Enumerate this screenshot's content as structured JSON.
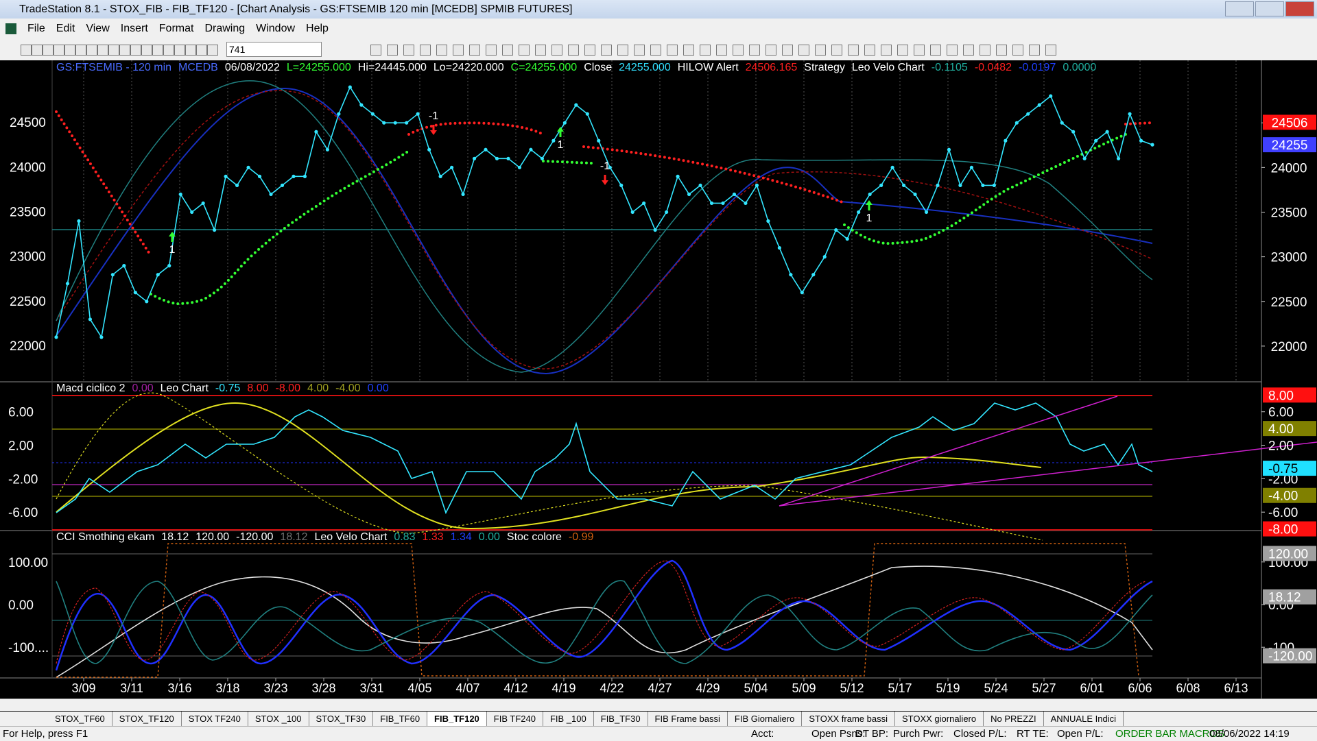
{
  "window": {
    "title": "TradeStation 8.1 - STOX_FIB - FIB_TF120 - [Chart Analysis - GS:FTSEMIB  120 min  [MCEDB] SPMIB FUTURES]",
    "menu": [
      "File",
      "Edit",
      "View",
      "Insert",
      "Format",
      "Drawing",
      "Window",
      "Help"
    ],
    "symbol_field": "741"
  },
  "price_panel": {
    "info": [
      {
        "text": "GS:FTSEMIB - 120 min",
        "color": "#4a6cff"
      },
      {
        "text": "MCEDB",
        "color": "#4a6cff"
      },
      {
        "text": "06/08/2022",
        "color": "#ffffff"
      },
      {
        "text": "L=24255.000",
        "color": "#33ff33"
      },
      {
        "text": "Hi=24445.000",
        "color": "#ffffff"
      },
      {
        "text": "Lo=24220.000",
        "color": "#ffffff"
      },
      {
        "text": "C=24255.000",
        "color": "#33ff33"
      },
      {
        "text": "Close",
        "color": "#ffffff"
      },
      {
        "text": "24255.000",
        "color": "#33e0ff"
      },
      {
        "text": "HILOW Alert",
        "color": "#ffffff"
      },
      {
        "text": "24506.165",
        "color": "#ff2020"
      },
      {
        "text": "Strategy",
        "color": "#ffffff"
      },
      {
        "text": "Leo Velo Chart",
        "color": "#ffffff"
      },
      {
        "text": "-0.1105",
        "color": "#20b0a0"
      },
      {
        "text": "-0.0482",
        "color": "#ff2020"
      },
      {
        "text": "-0.0197",
        "color": "#2040ff"
      },
      {
        "text": "0.0000",
        "color": "#20b0a0"
      }
    ],
    "ylim": [
      21600,
      25200
    ],
    "yticks": [
      24500,
      24000,
      23500,
      23000,
      22500,
      22000
    ],
    "last_labels": [
      {
        "value": 24506,
        "color": "#ff1010"
      },
      {
        "value": 24255,
        "color": "#4040ff"
      }
    ],
    "color": "#33e6ff",
    "values": [
      22100,
      22700,
      23400,
      22300,
      22100,
      22800,
      22900,
      22600,
      22500,
      22800,
      22900,
      23700,
      23500,
      23600,
      23300,
      23900,
      23800,
      24000,
      23900,
      23700,
      23800,
      23900,
      23900,
      24400,
      24200,
      24600,
      24900,
      24700,
      24600,
      24500,
      24500,
      24500,
      24600,
      24200,
      23900,
      24000,
      23700,
      24100,
      24200,
      24100,
      24100,
      24000,
      24200,
      24100,
      24300,
      24500,
      24700,
      24600,
      24300,
      24000,
      23800,
      23500,
      23600,
      23300,
      23500,
      23900,
      23700,
      23800,
      23600,
      23600,
      23700,
      23600,
      23800,
      23400,
      23100,
      22800,
      22600,
      22800,
      23000,
      23300,
      23200,
      23500,
      23700,
      23800,
      24000,
      23800,
      23700,
      23500,
      23800,
      24200,
      23800,
      24000,
      23800,
      23800,
      24300,
      24500,
      24600,
      24700,
      24800,
      24500,
      24400,
      24100,
      24300,
      24400,
      24100,
      24600,
      24300,
      24255
    ],
    "signals": [
      1,
      -1,
      1,
      -1,
      1
    ]
  },
  "macd_panel": {
    "info": [
      {
        "text": "Macd ciclico 2",
        "color": "#ffffff"
      },
      {
        "text": "0.00",
        "color": "#a020a0"
      },
      {
        "text": "Leo Chart",
        "color": "#ffffff"
      },
      {
        "text": "-0.75",
        "color": "#33e6ff"
      },
      {
        "text": "8.00",
        "color": "#ff2020"
      },
      {
        "text": "-8.00",
        "color": "#ff2020"
      },
      {
        "text": "4.00",
        "color": "#a0a020"
      },
      {
        "text": "-4.00",
        "color": "#a0a020"
      },
      {
        "text": "0.00",
        "color": "#2040ff"
      }
    ],
    "ylim": [
      -8.2,
      9.5
    ],
    "yticks": [
      {
        "value": 6,
        "label": "6.00"
      },
      {
        "value": 2,
        "label": "2.00"
      },
      {
        "value": -2,
        "label": "-2.00"
      },
      {
        "value": -6,
        "label": "-6.00"
      }
    ],
    "right_labels": [
      {
        "value": 8,
        "label": "8.00",
        "color": "#ff1010"
      },
      {
        "value": 4,
        "label": "4.00",
        "color": "#808000"
      },
      {
        "value": -0.75,
        "label": "-0.75",
        "color": "#20e0ff"
      },
      {
        "value": -4,
        "label": "-4.00",
        "color": "#808000"
      },
      {
        "value": -8,
        "label": "-8.00",
        "color": "#ff1010"
      }
    ]
  },
  "cci_panel": {
    "info": [
      {
        "text": "CCI Smothing ekam",
        "color": "#ffffff"
      },
      {
        "text": "18.12",
        "color": "#ffffff"
      },
      {
        "text": "120.00",
        "color": "#ffffff"
      },
      {
        "text": "-120.00",
        "color": "#ffffff"
      },
      {
        "text": "18.12",
        "color": "#707070"
      },
      {
        "text": "Leo Velo Chart",
        "color": "#ffffff"
      },
      {
        "text": "0.83",
        "color": "#20b0a0"
      },
      {
        "text": "1.33",
        "color": "#ff2020"
      },
      {
        "text": "1.34",
        "color": "#2040ff"
      },
      {
        "text": "0.00",
        "color": "#20b0a0"
      },
      {
        "text": "Stoc colore",
        "color": "#ffffff"
      },
      {
        "text": "-0.99",
        "color": "#d06010"
      }
    ],
    "ylim": [
      -172,
      172
    ],
    "yticks": [
      {
        "value": 100,
        "label": "100.00"
      },
      {
        "value": 0,
        "label": "0.00"
      },
      {
        "value": -100,
        "label": "-100...."
      }
    ],
    "right_labels": [
      {
        "value": 120,
        "label": "120.00",
        "color": "#a0a0a0"
      },
      {
        "value": 18.12,
        "label": "18.12",
        "color": "#a0a0a0"
      },
      {
        "value": -120,
        "label": "-120.00",
        "color": "#a0a0a0"
      }
    ]
  },
  "dates": [
    "3/09",
    "3/11",
    "3/16",
    "3/18",
    "3/23",
    "3/28",
    "3/31",
    "4/05",
    "4/07",
    "4/12",
    "4/19",
    "4/22",
    "4/27",
    "4/29",
    "5/04",
    "5/09",
    "5/12",
    "5/17",
    "5/19",
    "5/24",
    "5/27",
    "6/01",
    "6/06",
    "6/08",
    "6/13"
  ],
  "tabs": [
    "STOX_TF60",
    "STOX_TF120",
    "STOX TF240",
    "STOX _100",
    "STOX_TF30",
    "FIB_TF60",
    "FIB_TF120",
    "FIB TF240",
    "FIB _100",
    "FIB_TF30",
    "FIB Frame bassi",
    "FIB Giornaliero",
    "STOXX frame bassi",
    "STOXX giornaliero",
    "No PREZZI",
    "ANNUALE Indici"
  ],
  "status": [
    "For Help, press F1",
    "Acct:",
    "Open Psns:",
    "DT BP:",
    "Purch Pwr:",
    "Closed P/L:",
    "RT TE:",
    "Open P/L:",
    "ORDER BAR MACROS",
    "08/06/2022 14:19"
  ]
}
